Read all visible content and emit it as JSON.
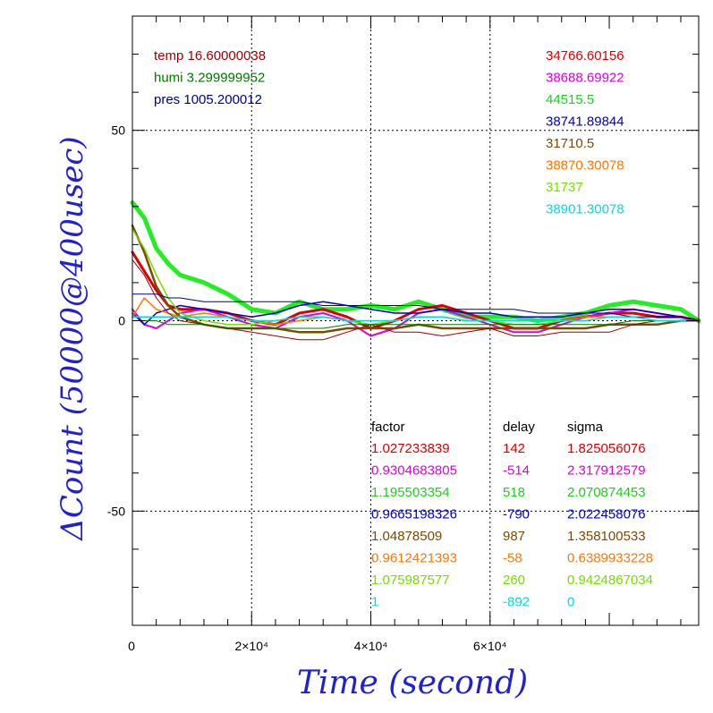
{
  "chart_data": {
    "type": "line",
    "xlabel": "Time (second)",
    "ylabel": "ΔCount (50000@400usec)",
    "xlim": [
      0,
      95000
    ],
    "ylim": [
      -80,
      80
    ],
    "x_ticks": [
      {
        "value": 0,
        "label": "0"
      },
      {
        "value": 20000,
        "label": "2×10⁴"
      },
      {
        "value": 40000,
        "label": "4×10⁴"
      },
      {
        "value": 60000,
        "label": "6×10⁴"
      }
    ],
    "y_ticks": [
      {
        "value": 50,
        "label": "50"
      },
      {
        "value": 0,
        "label": "0"
      },
      {
        "value": -50,
        "label": "-50"
      }
    ],
    "grid": true,
    "env_labels": [
      {
        "text": "temp 16.60000038",
        "color": "#990000"
      },
      {
        "text": "humi 3.299999952",
        "color": "#007700"
      },
      {
        "text": "pres 1005.200012",
        "color": "#000088"
      }
    ],
    "means": [
      {
        "text": "34766.60156",
        "color": "#dd0000"
      },
      {
        "text": "38688.69922",
        "color": "#dd00dd"
      },
      {
        "text": "44515.5",
        "color": "#22cc22"
      },
      {
        "text": "38741.89844",
        "color": "#0000cc"
      },
      {
        "text": "31710.5",
        "color": "#7a4a00"
      },
      {
        "text": "38870.30078",
        "color": "#ff7700"
      },
      {
        "text": "31737",
        "color": "#77dd00"
      },
      {
        "text": "38901.30078",
        "color": "#00dddd"
      }
    ],
    "table": {
      "headers": [
        "factor",
        "delay",
        "sigma"
      ],
      "rows": [
        {
          "factor": "1.027233839",
          "delay": "142",
          "sigma": "1.825056076",
          "color": "#dd0000"
        },
        {
          "factor": "0.9304683805",
          "delay": "-514",
          "sigma": "2.317912579",
          "color": "#dd00dd"
        },
        {
          "factor": "1.195503354",
          "delay": "518",
          "sigma": "2.070874453",
          "color": "#22cc22"
        },
        {
          "factor": "0.9665198326",
          "delay": "-790",
          "sigma": "2.022458076",
          "color": "#0000cc"
        },
        {
          "factor": "1.04878509",
          "delay": "987",
          "sigma": "1.358100533",
          "color": "#7a4a00"
        },
        {
          "factor": "0.9612421393",
          "delay": "-58",
          "sigma": "0.6389933228",
          "color": "#ff7700"
        },
        {
          "factor": "1.075987577",
          "delay": "260",
          "sigma": "0.9424867034",
          "color": "#77dd00"
        },
        {
          "factor": "1",
          "delay": "-892",
          "sigma": "0",
          "color": "#00dddd"
        }
      ]
    },
    "series": [
      {
        "color": "#22ee22",
        "width": 5,
        "x": [
          0,
          2000,
          4000,
          6000,
          8000,
          12000,
          16000,
          20000,
          24000,
          28000,
          32000,
          36000,
          40000,
          44000,
          48000,
          52000,
          56000,
          60000,
          64000,
          68000,
          72000,
          76000,
          80000,
          84000,
          88000,
          92000,
          95000
        ],
        "y": [
          31,
          27,
          19,
          15,
          12,
          10,
          7,
          3,
          2,
          5,
          3,
          3,
          4,
          3,
          5,
          3,
          1,
          1,
          1,
          0,
          1,
          2,
          4,
          5,
          4,
          3,
          0
        ]
      },
      {
        "color": "#dd0000",
        "width": 3,
        "x": [
          0,
          2000,
          4000,
          6000,
          8000,
          12000,
          16000,
          20000,
          24000,
          28000,
          32000,
          36000,
          40000,
          44000,
          48000,
          52000,
          56000,
          60000,
          64000,
          68000,
          72000,
          76000,
          80000,
          84000,
          88000,
          92000,
          95000
        ],
        "y": [
          18,
          13,
          8,
          4,
          3,
          3,
          2,
          0,
          -1,
          2,
          3,
          1,
          -2,
          0,
          3,
          4,
          2,
          0,
          -2,
          -2,
          0,
          1,
          2,
          2,
          1,
          1,
          0
        ]
      },
      {
        "color": "#dd00dd",
        "width": 2,
        "x": [
          0,
          2000,
          4000,
          6000,
          8000,
          12000,
          16000,
          20000,
          24000,
          28000,
          32000,
          36000,
          40000,
          44000,
          48000,
          52000,
          56000,
          60000,
          64000,
          68000,
          72000,
          76000,
          80000,
          84000,
          88000,
          92000,
          95000
        ],
        "y": [
          3,
          -1,
          -2,
          0,
          2,
          3,
          1,
          -1,
          -2,
          1,
          2,
          0,
          -4,
          -2,
          2,
          3,
          1,
          -1,
          -3,
          -3,
          -1,
          1,
          2,
          3,
          2,
          1,
          0
        ]
      },
      {
        "color": "#0000cc",
        "width": 1.5,
        "x": [
          0,
          2000,
          4000,
          6000,
          8000,
          12000,
          16000,
          20000,
          24000,
          28000,
          32000,
          36000,
          40000,
          44000,
          48000,
          52000,
          56000,
          60000,
          64000,
          68000,
          72000,
          76000,
          80000,
          84000,
          88000,
          92000,
          95000
        ],
        "y": [
          2,
          -1,
          2,
          3,
          4,
          3,
          2,
          1,
          2,
          4,
          5,
          4,
          3,
          2,
          2,
          3,
          2,
          2,
          1,
          1,
          1,
          2,
          3,
          3,
          2,
          1,
          0
        ]
      },
      {
        "color": "#7a4a00",
        "width": 2.5,
        "x": [
          0,
          2000,
          4000,
          6000,
          8000,
          12000,
          16000,
          20000,
          24000,
          28000,
          32000,
          36000,
          40000,
          44000,
          48000,
          52000,
          56000,
          60000,
          64000,
          68000,
          72000,
          76000,
          80000,
          84000,
          88000,
          92000,
          95000
        ],
        "y": [
          25,
          18,
          9,
          4,
          1,
          -1,
          -2,
          -2,
          -2,
          -3,
          -3,
          -2,
          -2,
          -2,
          -1,
          -2,
          -2,
          -2,
          -2,
          -2,
          -2,
          -2,
          -1,
          -1,
          -1,
          0,
          0
        ]
      },
      {
        "color": "#ff7700",
        "width": 1.5,
        "x": [
          0,
          2000,
          4000,
          6000,
          8000,
          12000,
          16000,
          20000,
          24000,
          28000,
          32000,
          36000,
          40000,
          44000,
          48000,
          52000,
          56000,
          60000,
          64000,
          68000,
          72000,
          76000,
          80000,
          84000,
          88000,
          92000,
          95000
        ],
        "y": [
          1,
          6,
          3,
          2,
          1,
          2,
          1,
          0,
          -1,
          0,
          1,
          0,
          -1,
          0,
          1,
          1,
          0,
          0,
          -1,
          -1,
          0,
          1,
          1,
          1,
          0,
          0,
          0
        ]
      },
      {
        "color": "#77dd00",
        "width": 1.5,
        "x": [
          0,
          2000,
          4000,
          6000,
          8000,
          12000,
          16000,
          20000,
          24000,
          28000,
          32000,
          36000,
          40000,
          44000,
          48000,
          52000,
          56000,
          60000,
          64000,
          68000,
          72000,
          76000,
          80000,
          84000,
          88000,
          92000,
          95000
        ],
        "y": [
          24,
          19,
          12,
          6,
          2,
          0,
          -1,
          -1,
          0,
          1,
          1,
          0,
          -1,
          0,
          1,
          1,
          0,
          0,
          -1,
          -1,
          0,
          0,
          1,
          1,
          0,
          0,
          0
        ]
      },
      {
        "color": "#990000",
        "width": 1,
        "x": [
          0,
          2000,
          4000,
          6000,
          8000,
          12000,
          16000,
          20000,
          24000,
          28000,
          32000,
          36000,
          40000,
          44000,
          48000,
          52000,
          56000,
          60000,
          64000,
          68000,
          72000,
          76000,
          80000,
          84000,
          88000,
          92000,
          95000
        ],
        "y": [
          16,
          12,
          6,
          2,
          0,
          -1,
          -2,
          -3,
          -4,
          -5,
          -5,
          -3,
          -1,
          -3,
          -3,
          -4,
          -3,
          -2,
          -4,
          -4,
          -3,
          -3,
          -3,
          -1,
          0,
          0,
          0
        ]
      },
      {
        "color": "#007700",
        "width": 1,
        "x": [
          0,
          2000,
          4000,
          6000,
          8000,
          12000,
          16000,
          20000,
          24000,
          28000,
          32000,
          36000,
          40000,
          44000,
          48000,
          52000,
          56000,
          60000,
          64000,
          68000,
          72000,
          76000,
          80000,
          84000,
          88000,
          92000,
          95000
        ],
        "y": [
          0,
          0,
          0,
          -1,
          -1,
          -1,
          -2,
          -2,
          -2,
          -2,
          -2,
          -1,
          -1,
          -1,
          -1,
          -1,
          -1,
          -1,
          -1,
          -1,
          -1,
          -1,
          -1,
          0,
          0,
          0,
          0
        ]
      },
      {
        "color": "#000088",
        "width": 1,
        "x": [
          0,
          2000,
          4000,
          6000,
          8000,
          12000,
          16000,
          20000,
          24000,
          28000,
          32000,
          36000,
          40000,
          44000,
          48000,
          52000,
          56000,
          60000,
          64000,
          68000,
          72000,
          76000,
          80000,
          84000,
          88000,
          92000,
          95000
        ],
        "y": [
          7,
          7,
          7,
          6,
          6,
          5,
          5,
          5,
          5,
          5,
          4,
          4,
          4,
          4,
          4,
          3,
          3,
          3,
          3,
          2,
          2,
          2,
          2,
          1,
          1,
          1,
          0
        ]
      },
      {
        "color": "#00dddd",
        "width": 1.5,
        "x": [
          0,
          2000,
          4000,
          6000,
          8000,
          12000,
          16000,
          20000,
          24000,
          28000,
          32000,
          36000,
          40000,
          44000,
          48000,
          52000,
          56000,
          60000,
          64000,
          68000,
          72000,
          76000,
          80000,
          84000,
          88000,
          92000,
          95000
        ],
        "y": [
          1,
          1,
          1,
          1,
          1,
          1,
          1,
          0,
          0,
          1,
          1,
          0,
          0,
          0,
          1,
          1,
          0,
          0,
          0,
          0,
          0,
          0,
          1,
          1,
          0,
          0,
          0
        ]
      }
    ]
  }
}
